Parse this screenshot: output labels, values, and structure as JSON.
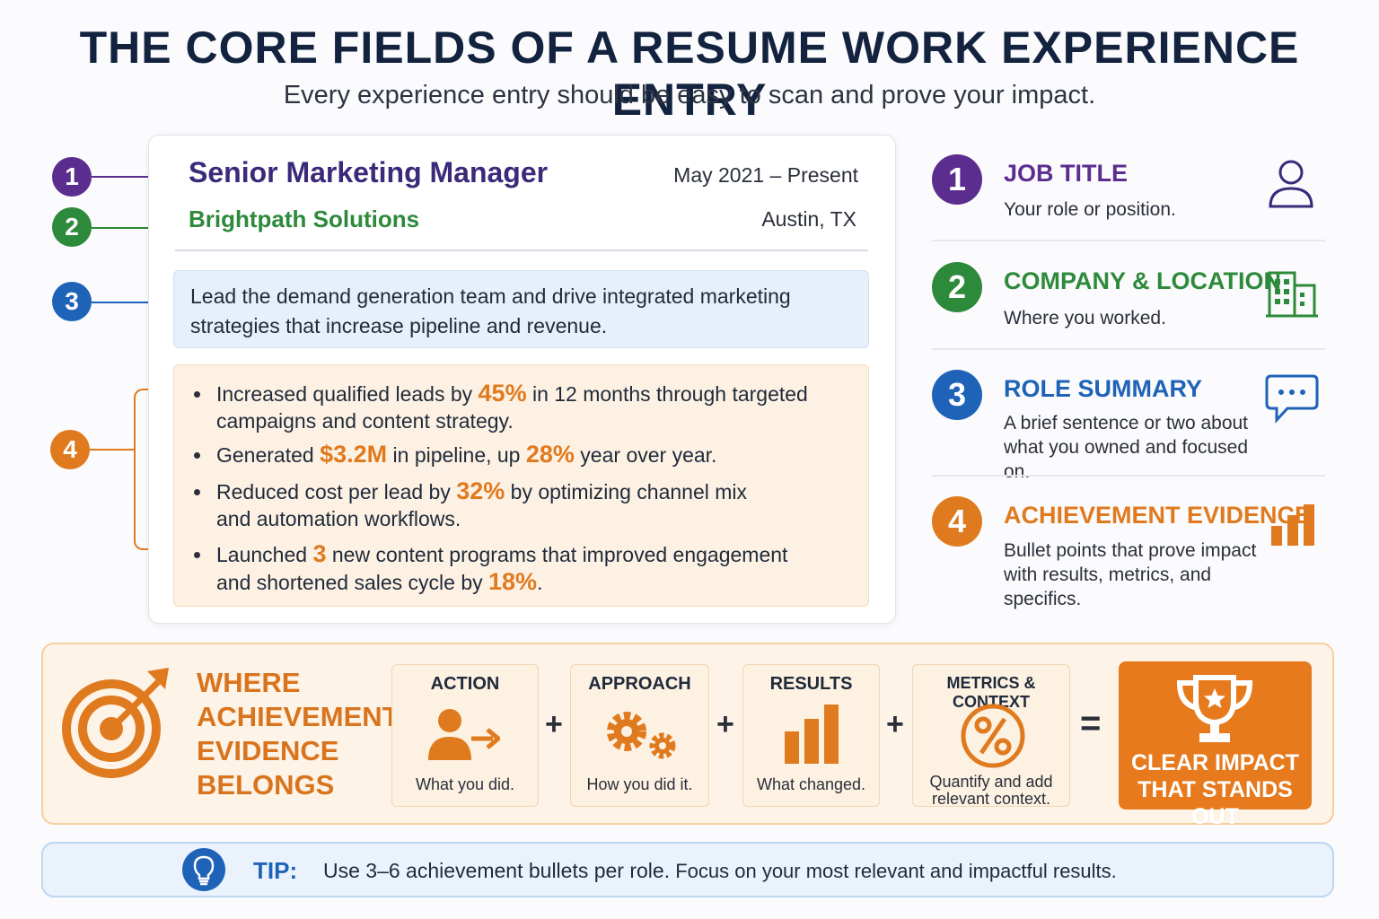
{
  "header": {
    "title": "THE CORE FIELDS OF A RESUME WORK EXPERIENCE ENTRY",
    "subtitle": "Every experience entry should be easy to scan and prove your impact."
  },
  "resume": {
    "job_title": "Senior Marketing Manager",
    "dates": "May 2021 – Present",
    "company": "Brightpath Solutions",
    "location": "Austin, TX",
    "summary": "Lead the demand generation team and drive integrated marketing strategies that increase pipeline and revenue.",
    "bullets": [
      {
        "a": "Increased qualified leads by ",
        "h1": "45%",
        "b": " in 12 months through targeted",
        "c": "campaigns and content strategy."
      },
      {
        "a": "Generated ",
        "h1": "$3.2M",
        "b": " in pipeline, up ",
        "h2": "28%",
        "c": " year over year."
      },
      {
        "a": "Reduced cost per lead by ",
        "h1": "32%",
        "b": " by optimizing channel mix",
        "c": "and automation workflows."
      },
      {
        "a": "Launched ",
        "h1": "3",
        "b": " new content programs that improved engagement",
        "c": "and shortened sales cycle by ",
        "h2": "18%",
        "d": "."
      }
    ]
  },
  "markers": [
    "1",
    "2",
    "3",
    "4"
  ],
  "legend": [
    {
      "num": "1",
      "title": "JOB TITLE",
      "desc": "Your role or position.",
      "icon": "person-icon",
      "color": "#5b2d8e"
    },
    {
      "num": "2",
      "title": "COMPANY & LOCATION",
      "desc": "Where you worked.",
      "icon": "building-icon",
      "color": "#2e8a3b"
    },
    {
      "num": "3",
      "title": "ROLE SUMMARY",
      "desc": "A brief sentence or two about what you owned and focused on.",
      "icon": "chat-bubble-icon",
      "color": "#1e63b8"
    },
    {
      "num": "4",
      "title": "ACHIEVEMENT EVIDENCE",
      "desc": "Bullet points that prove impact with results, metrics, and specifics.",
      "icon": "bar-chart-icon",
      "color": "#e07a1f"
    }
  ],
  "formula": {
    "heading": "WHERE ACHIEVEMENT EVIDENCE BELONGS",
    "steps": [
      {
        "title": "ACTION",
        "desc": "What you did.",
        "icon": "person-arrow-icon"
      },
      {
        "title": "APPROACH",
        "desc": "How you did it.",
        "icon": "gears-icon"
      },
      {
        "title": "RESULTS",
        "desc": "What changed.",
        "icon": "bar-chart-icon"
      },
      {
        "title": "METRICS & CONTEXT",
        "desc": "Quantify and add relevant context.",
        "icon": "percent-icon"
      }
    ],
    "plus": "+",
    "equals": "=",
    "result": "CLEAR IMPACT THAT STANDS OUT",
    "accent": "#e67a1d"
  },
  "tip": {
    "label": "TIP:",
    "text_bold": "Use 3–6 achievement bullets per role.",
    "text_rest": " Focus on your most relevant and impactful results."
  }
}
